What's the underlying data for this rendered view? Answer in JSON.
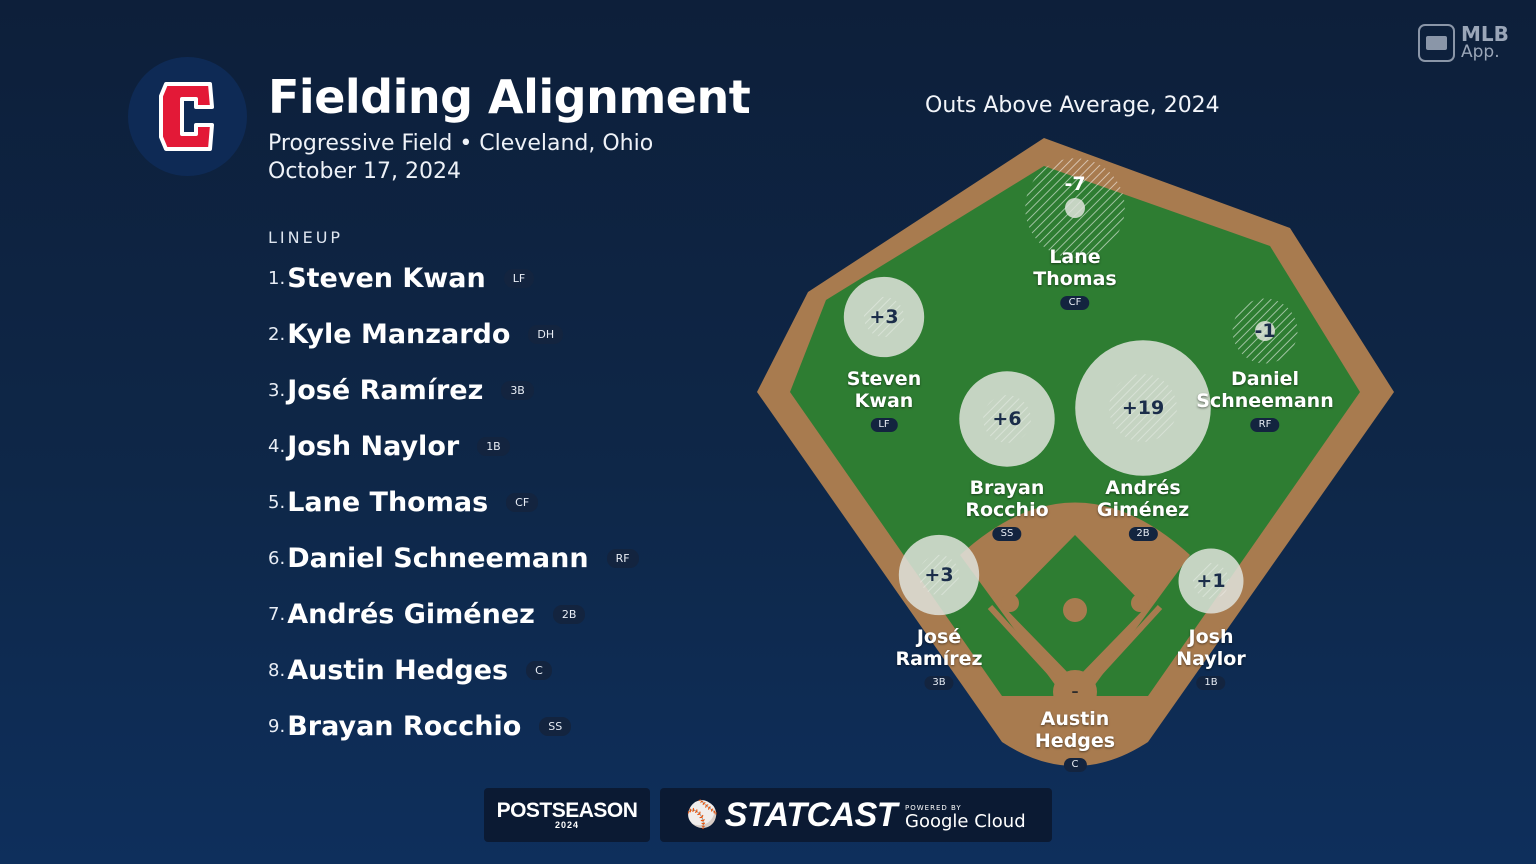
{
  "header": {
    "title": "Fielding Alignment",
    "venue_line": "Progressive Field • Cleveland, Ohio",
    "date_line": "October 17, 2024",
    "team_logo_letter": "C"
  },
  "branding": {
    "app_line1": "MLB",
    "app_line2": "App.",
    "postseason": "POSTSEASON",
    "postseason_year": "2024",
    "statcast": "STATCAST",
    "powered_by": "POWERED BY",
    "google_cloud": "Google Cloud"
  },
  "lineup": {
    "label": "LINEUP",
    "players": [
      {
        "num": "1.",
        "name": "Steven Kwan",
        "pos": "LF"
      },
      {
        "num": "2.",
        "name": "Kyle Manzardo",
        "pos": "DH"
      },
      {
        "num": "3.",
        "name": "José Ramírez",
        "pos": "3B"
      },
      {
        "num": "4.",
        "name": "Josh Naylor",
        "pos": "1B"
      },
      {
        "num": "5.",
        "name": "Lane Thomas",
        "pos": "CF"
      },
      {
        "num": "6.",
        "name": "Daniel Schneemann",
        "pos": "RF"
      },
      {
        "num": "7.",
        "name": "Andrés Giménez",
        "pos": "2B"
      },
      {
        "num": "8.",
        "name": "Austin Hedges",
        "pos": "C"
      },
      {
        "num": "9.",
        "name": "Brayan Rocchio",
        "pos": "SS"
      }
    ]
  },
  "field": {
    "title": "Outs Above Average, 2024",
    "colors": {
      "grass": "#2e7d32",
      "dirt": "#a87b4f",
      "bubble": "#dfe3dc"
    },
    "fielders": [
      {
        "first": "Lane",
        "last": "Thomas",
        "pos": "CF",
        "oaa": "-7",
        "oaa_value": -7
      },
      {
        "first": "Steven",
        "last": "Kwan",
        "pos": "LF",
        "oaa": "+3",
        "oaa_value": 3
      },
      {
        "first": "Daniel",
        "last": "Schneemann",
        "pos": "RF",
        "oaa": "-1",
        "oaa_value": -1
      },
      {
        "first": "Brayan",
        "last": "Rocchio",
        "pos": "SS",
        "oaa": "+6",
        "oaa_value": 6
      },
      {
        "first": "Andrés",
        "last": "Giménez",
        "pos": "2B",
        "oaa": "+19",
        "oaa_value": 19
      },
      {
        "first": "José",
        "last": "Ramírez",
        "pos": "3B",
        "oaa": "+3",
        "oaa_value": 3
      },
      {
        "first": "Josh",
        "last": "Naylor",
        "pos": "1B",
        "oaa": "+1",
        "oaa_value": 1
      },
      {
        "first": "Austin",
        "last": "Hedges",
        "pos": "C",
        "oaa": "–",
        "oaa_value": null
      }
    ]
  }
}
